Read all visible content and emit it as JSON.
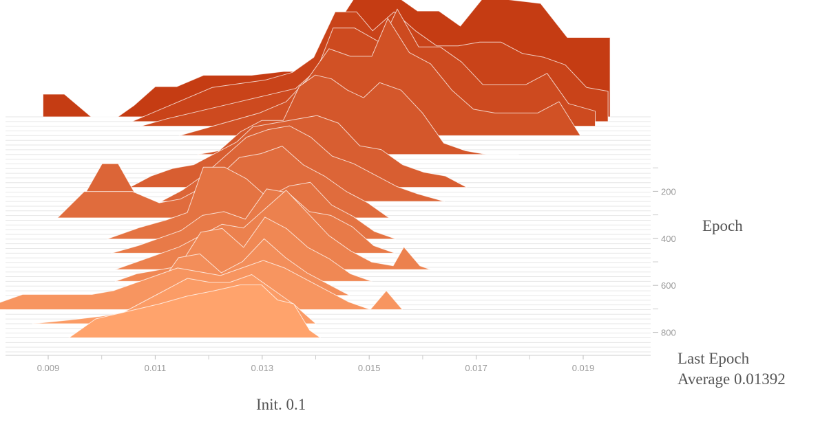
{
  "chart_data": {
    "type": "area",
    "title": "",
    "xlabel": "",
    "ylabel": "Epoch",
    "xlim": [
      0.0082,
      0.0195
    ],
    "x_ticks": [
      0.009,
      0.011,
      0.013,
      0.015,
      0.017,
      0.019
    ],
    "x_tick_labels": [
      "0.009",
      "0.011",
      "0.013",
      "0.015",
      "0.017",
      "0.019"
    ],
    "y_ticks": [
      200,
      400,
      600,
      800
    ],
    "y_tick_labels": [
      "200",
      "400",
      "600",
      "800"
    ],
    "epoch_range": [
      0,
      1000
    ],
    "colors": {
      "oldest": "#c53c13",
      "newest": "#ffa36c",
      "gridline": "#e6e6e6",
      "tick": "#999999",
      "text": "#555555"
    },
    "series": [
      {
        "epoch": 0,
        "x": [
          0.0088,
          0.0092,
          0.0097,
          0.0102,
          0.0105,
          0.0109,
          0.0113,
          0.0118,
          0.0123,
          0.0127,
          0.0133,
          0.0138,
          0.014,
          0.0146,
          0.0149,
          0.0152,
          0.0155,
          0.0158,
          0.0162,
          0.0166,
          0.017,
          0.0175,
          0.0181,
          0.0186,
          0.0194
        ],
        "y": [
          0.3,
          0.3,
          0.0,
          0.0,
          0.15,
          0.4,
          0.4,
          0.55,
          0.55,
          0.55,
          0.6,
          0.6,
          0.9,
          1.55,
          1.55,
          1.55,
          1.55,
          1.4,
          1.4,
          1.2,
          1.55,
          1.55,
          1.5,
          1.05,
          1.05
        ]
      },
      {
        "epoch": 20,
        "x": [
          0.0105,
          0.011,
          0.0115,
          0.012,
          0.0125,
          0.013,
          0.0135,
          0.0139,
          0.0143,
          0.0147,
          0.015,
          0.0154,
          0.0158,
          0.0162,
          0.0166,
          0.017,
          0.0174,
          0.0178,
          0.0182,
          0.0186,
          0.019,
          0.0194
        ],
        "y": [
          0.0,
          0.15,
          0.3,
          0.45,
          0.5,
          0.55,
          0.65,
          0.85,
          1.45,
          1.45,
          1.2,
          1.45,
          1.2,
          1.0,
          1.0,
          1.05,
          1.05,
          0.9,
          0.85,
          0.75,
          0.45,
          0.4
        ]
      },
      {
        "epoch": 40,
        "x": [
          0.0107,
          0.0112,
          0.0118,
          0.0124,
          0.013,
          0.0136,
          0.014,
          0.0143,
          0.0147,
          0.0152,
          0.0155,
          0.0159,
          0.0163,
          0.0167,
          0.0171,
          0.0175,
          0.0179,
          0.0183,
          0.0187,
          0.0192
        ],
        "y": [
          0.0,
          0.1,
          0.2,
          0.3,
          0.4,
          0.5,
          0.75,
          1.3,
          1.3,
          1.1,
          1.55,
          1.05,
          1.05,
          0.85,
          0.55,
          0.55,
          0.55,
          0.7,
          0.3,
          0.2
        ]
      },
      {
        "epoch": 80,
        "x": [
          0.0115,
          0.012,
          0.0125,
          0.013,
          0.0135,
          0.0139,
          0.0143,
          0.0147,
          0.0151,
          0.0154,
          0.0158,
          0.0162,
          0.0166,
          0.017,
          0.0174,
          0.0178,
          0.0182,
          0.0186,
          0.019
        ],
        "y": [
          0.0,
          0.1,
          0.2,
          0.3,
          0.45,
          0.75,
          1.15,
          1.05,
          1.05,
          1.55,
          1.1,
          0.95,
          0.6,
          0.35,
          0.3,
          0.3,
          0.3,
          0.45,
          0.0
        ]
      },
      {
        "epoch": 160,
        "x": [
          0.012,
          0.0124,
          0.0128,
          0.0132,
          0.0136,
          0.0139,
          0.0142,
          0.0145,
          0.0148,
          0.0151,
          0.0154,
          0.0158,
          0.0162,
          0.0166,
          0.017,
          0.0174,
          0.018
        ],
        "y": [
          0.0,
          0.05,
          0.3,
          0.45,
          0.45,
          0.9,
          1.05,
          1.0,
          0.85,
          0.75,
          0.95,
          0.85,
          0.55,
          0.15,
          0.05,
          0.0,
          0.0
        ]
      },
      {
        "epoch": 300,
        "x": [
          0.011,
          0.0114,
          0.0118,
          0.0122,
          0.0126,
          0.013,
          0.0133,
          0.0137,
          0.0141,
          0.0145,
          0.0149,
          0.0153,
          0.0157,
          0.0161,
          0.0165,
          0.0169,
          0.0173
        ],
        "y": [
          0.0,
          0.15,
          0.25,
          0.3,
          0.45,
          0.6,
          0.8,
          0.85,
          0.9,
          0.95,
          0.85,
          0.55,
          0.5,
          0.3,
          0.2,
          0.15,
          0.0
        ]
      },
      {
        "epoch": 360,
        "x": [
          0.0102,
          0.0106,
          0.0109,
          0.0113,
          0.0117,
          0.0121,
          0.0125,
          0.0129,
          0.0133,
          0.0137,
          0.0141,
          0.0145,
          0.0149,
          0.0153,
          0.0157,
          0.0161,
          0.0165,
          0.017
        ],
        "y": [
          0.0,
          0.5,
          0.5,
          0.0,
          0.0,
          0.15,
          0.35,
          0.6,
          0.85,
          0.95,
          1.0,
          0.85,
          0.6,
          0.5,
          0.35,
          0.2,
          0.1,
          0.0
        ]
      },
      {
        "epoch": 430,
        "x": [
          0.0099,
          0.0104,
          0.0108,
          0.0113,
          0.0118,
          0.0122,
          0.0126,
          0.013,
          0.0133,
          0.0137,
          0.0141,
          0.0145,
          0.0149,
          0.0153,
          0.0157,
          0.0161
        ],
        "y": [
          0.0,
          0.35,
          0.35,
          0.35,
          0.2,
          0.25,
          0.4,
          0.6,
          0.8,
          0.85,
          0.95,
          0.7,
          0.55,
          0.35,
          0.2,
          0.0
        ]
      },
      {
        "epoch": 520,
        "x": [
          0.011,
          0.0116,
          0.0121,
          0.0125,
          0.0128,
          0.0132,
          0.0136,
          0.014,
          0.0144,
          0.0148,
          0.0152,
          0.0156,
          0.016,
          0.0164
        ],
        "y": [
          0.0,
          0.15,
          0.25,
          0.35,
          0.95,
          0.95,
          0.8,
          0.55,
          0.7,
          0.75,
          0.45,
          0.3,
          0.1,
          0.0
        ]
      },
      {
        "epoch": 580,
        "x": [
          0.0112,
          0.0117,
          0.0121,
          0.0125,
          0.0129,
          0.0133,
          0.0137,
          0.0141,
          0.0145,
          0.0149,
          0.0153,
          0.0157,
          0.0161,
          0.0165
        ],
        "y": [
          0.0,
          0.1,
          0.2,
          0.3,
          0.5,
          0.55,
          0.45,
          0.85,
          0.8,
          0.55,
          0.5,
          0.35,
          0.1,
          0.0
        ]
      },
      {
        "epoch": 650,
        "x": [
          0.0114,
          0.0118,
          0.0122,
          0.0126,
          0.013,
          0.0134,
          0.0138,
          0.0142,
          0.0146,
          0.015,
          0.0154,
          0.0158,
          0.0162,
          0.0166,
          0.0168,
          0.0171,
          0.0173
        ],
        "y": [
          0.0,
          0.1,
          0.2,
          0.3,
          0.45,
          0.6,
          0.55,
          0.8,
          1.05,
          0.75,
          0.45,
          0.25,
          0.1,
          0.05,
          0.3,
          0.05,
          0.0
        ]
      },
      {
        "epoch": 700,
        "x": [
          0.0115,
          0.0119,
          0.0123,
          0.0127,
          0.0131,
          0.0135,
          0.0139,
          0.0143,
          0.0147,
          0.0151,
          0.0155,
          0.0159,
          0.0163
        ],
        "y": [
          0.0,
          0.1,
          0.15,
          0.2,
          0.65,
          0.7,
          0.45,
          0.85,
          0.7,
          0.45,
          0.3,
          0.1,
          0.0
        ]
      },
      {
        "epoch": 760,
        "x": [
          0.0116,
          0.012,
          0.0124,
          0.0128,
          0.0132,
          0.0136,
          0.014,
          0.0144,
          0.0148,
          0.0152,
          0.0156,
          0.016
        ],
        "y": [
          0.0,
          0.05,
          0.1,
          0.5,
          0.55,
          0.3,
          0.45,
          0.75,
          0.5,
          0.3,
          0.15,
          0.0
        ]
      },
      {
        "epoch": 820,
        "x": [
          0.0092,
          0.01,
          0.0108,
          0.0113,
          0.0117,
          0.0121,
          0.0125,
          0.0129,
          0.0133,
          0.0137,
          0.0141,
          0.0145,
          0.0149,
          0.0153,
          0.0157,
          0.0161,
          0.0165,
          0.0168,
          0.0171
        ],
        "y": [
          0.0,
          0.2,
          0.2,
          0.2,
          0.25,
          0.35,
          0.45,
          0.55,
          0.5,
          0.45,
          0.55,
          0.65,
          0.55,
          0.4,
          0.25,
          0.1,
          0.0,
          0.25,
          0.0
        ]
      },
      {
        "epoch": 880,
        "x": [
          0.0103,
          0.011,
          0.0116,
          0.012,
          0.0124,
          0.0128,
          0.0132,
          0.0136,
          0.014,
          0.0144,
          0.0148,
          0.0152,
          0.0156
        ],
        "y": [
          0.0,
          0.05,
          0.1,
          0.15,
          0.3,
          0.45,
          0.6,
          0.55,
          0.55,
          0.65,
          0.45,
          0.25,
          0.0
        ]
      },
      {
        "epoch": 940,
        "x": [
          0.0111,
          0.0116,
          0.0122,
          0.0128,
          0.0133,
          0.0138,
          0.0143,
          0.0147,
          0.015,
          0.0153,
          0.0156,
          0.0158
        ],
        "y": [
          0.0,
          0.25,
          0.35,
          0.45,
          0.55,
          0.62,
          0.7,
          0.7,
          0.5,
          0.45,
          0.1,
          0.0
        ]
      }
    ]
  },
  "labels": {
    "epoch": "Epoch",
    "last_epoch_line1": "Last Epoch",
    "last_epoch_line2": "Average 0.01392",
    "init": "Init. 0.1"
  }
}
